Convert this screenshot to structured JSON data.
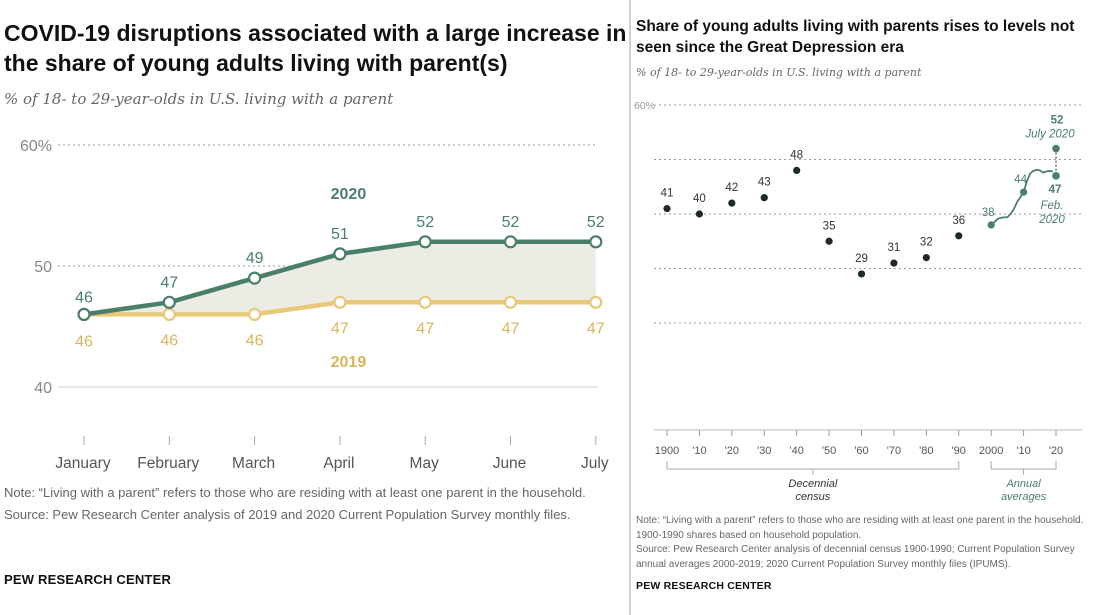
{
  "left": {
    "title": "COVID-19 disruptions associated with a large increase in the share of young adults living with parent(s)",
    "subtitle": "% of 18- to 29-year-olds in U.S. living with a parent",
    "note": "Note: “Living with a parent” refers to those who are residing with at least one parent in the household.",
    "source": "Source: Pew Research Center analysis of 2019 and 2020 Current Population Survey monthly files.",
    "logo": "PEW RESEARCH CENTER"
  },
  "right": {
    "title": "Share of young adults living with parents rises to levels not seen since the Great Depression era",
    "subtitle": "% of 18- to 29-year-olds in U.S. living with a parent",
    "note": "Note: “Living with a parent” refers to those who are residing with at least one parent in the household. 1900-1990 shares based on household population.",
    "source": "Source: Pew Research Center analysis of decennial census 1900-1990; Current Population Survey annual averages 2000-2019; 2020 Current Population Survey monthly files (IPUMS).",
    "logo": "PEW RESEARCH CENTER"
  },
  "chart_data": [
    {
      "type": "area",
      "categories": [
        "January",
        "February",
        "March",
        "April",
        "May",
        "June",
        "July"
      ],
      "series": [
        {
          "name": "2020",
          "values": [
            46,
            47,
            49,
            51,
            52,
            52,
            52
          ],
          "color": "#4a7f6a"
        },
        {
          "name": "2019",
          "values": [
            46,
            46,
            46,
            47,
            47,
            47,
            47
          ],
          "color": "#e8c97a"
        }
      ],
      "y_ticks": [
        "60%",
        "50",
        "40"
      ],
      "ylim": [
        40,
        60
      ],
      "fill_between_color": "#ecebe4",
      "grid": true
    },
    {
      "type": "scatter",
      "x_tick_labels": [
        "1900",
        "'10",
        "'20",
        "'30",
        "'40",
        "'50",
        "'60",
        "'70",
        "'80",
        "'90",
        "2000",
        "'10",
        "'20"
      ],
      "decennial": {
        "x": [
          1900,
          1910,
          1920,
          1930,
          1940,
          1950,
          1960,
          1970,
          1980,
          1990
        ],
        "values": [
          41,
          40,
          42,
          43,
          48,
          35,
          29,
          31,
          32,
          36
        ],
        "color": "#1f2a25"
      },
      "annual": {
        "color": "#4a7f6a",
        "labeled_points": [
          {
            "x": 2000,
            "value": 38
          },
          {
            "x": 2010,
            "value": 44
          }
        ],
        "trend_x": [
          2000,
          2001,
          2002,
          2003,
          2004,
          2005,
          2006,
          2007,
          2008,
          2009,
          2010,
          2011,
          2012,
          2013,
          2014,
          2015,
          2016,
          2017,
          2018,
          2019
        ],
        "trend_values": [
          38,
          38.5,
          39.1,
          39.3,
          39.4,
          39.4,
          40,
          40.9,
          42.2,
          43.1,
          44,
          46,
          47.4,
          47.9,
          48.1,
          48,
          47.6,
          47.8,
          47.9,
          47.8
        ]
      },
      "highlights": [
        {
          "value": 52,
          "value_label": "52",
          "label": "July 2020"
        },
        {
          "value": 47,
          "value_label": "47",
          "label": "Feb. 2020"
        }
      ],
      "y_ticks": [
        "60%"
      ],
      "ylim": [
        0,
        60
      ],
      "group_labels": [
        "Decennial census",
        "Annual averages"
      ],
      "grid": true
    }
  ]
}
